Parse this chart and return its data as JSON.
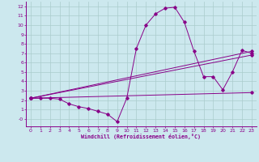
{
  "xlabel": "Windchill (Refroidissement éolien,°C)",
  "bg_color": "#cce8ee",
  "line_color": "#880088",
  "grid_color": "#aacccc",
  "xlim": [
    -0.5,
    23.5
  ],
  "ylim": [
    -0.8,
    12.5
  ],
  "xticks": [
    0,
    1,
    2,
    3,
    4,
    5,
    6,
    7,
    8,
    9,
    10,
    11,
    12,
    13,
    14,
    15,
    16,
    17,
    18,
    19,
    20,
    21,
    22,
    23
  ],
  "yticks": [
    0,
    1,
    2,
    3,
    4,
    5,
    6,
    7,
    8,
    9,
    10,
    11,
    12
  ],
  "ytick_labels": [
    "-0",
    "1",
    "2",
    "3",
    "4",
    "5",
    "6",
    "7",
    "8",
    "9",
    "10",
    "11",
    "12"
  ],
  "series_main": {
    "x": [
      0,
      1,
      2,
      3,
      4,
      5,
      6,
      7,
      8,
      9,
      10,
      11,
      12,
      13,
      14,
      15,
      16,
      17,
      18,
      19,
      20,
      21,
      22,
      23
    ],
    "y": [
      2.2,
      2.2,
      2.2,
      2.1,
      1.6,
      1.3,
      1.1,
      0.8,
      0.5,
      -0.3,
      2.2,
      7.5,
      10.0,
      11.2,
      11.8,
      11.9,
      10.3,
      7.2,
      4.5,
      4.5,
      3.1,
      5.0,
      7.3,
      7.0
    ]
  },
  "series_lines": [
    {
      "x": [
        0,
        23
      ],
      "y": [
        2.2,
        7.2
      ]
    },
    {
      "x": [
        0,
        23
      ],
      "y": [
        2.2,
        6.8
      ]
    },
    {
      "x": [
        0,
        23
      ],
      "y": [
        2.2,
        2.8
      ]
    }
  ]
}
